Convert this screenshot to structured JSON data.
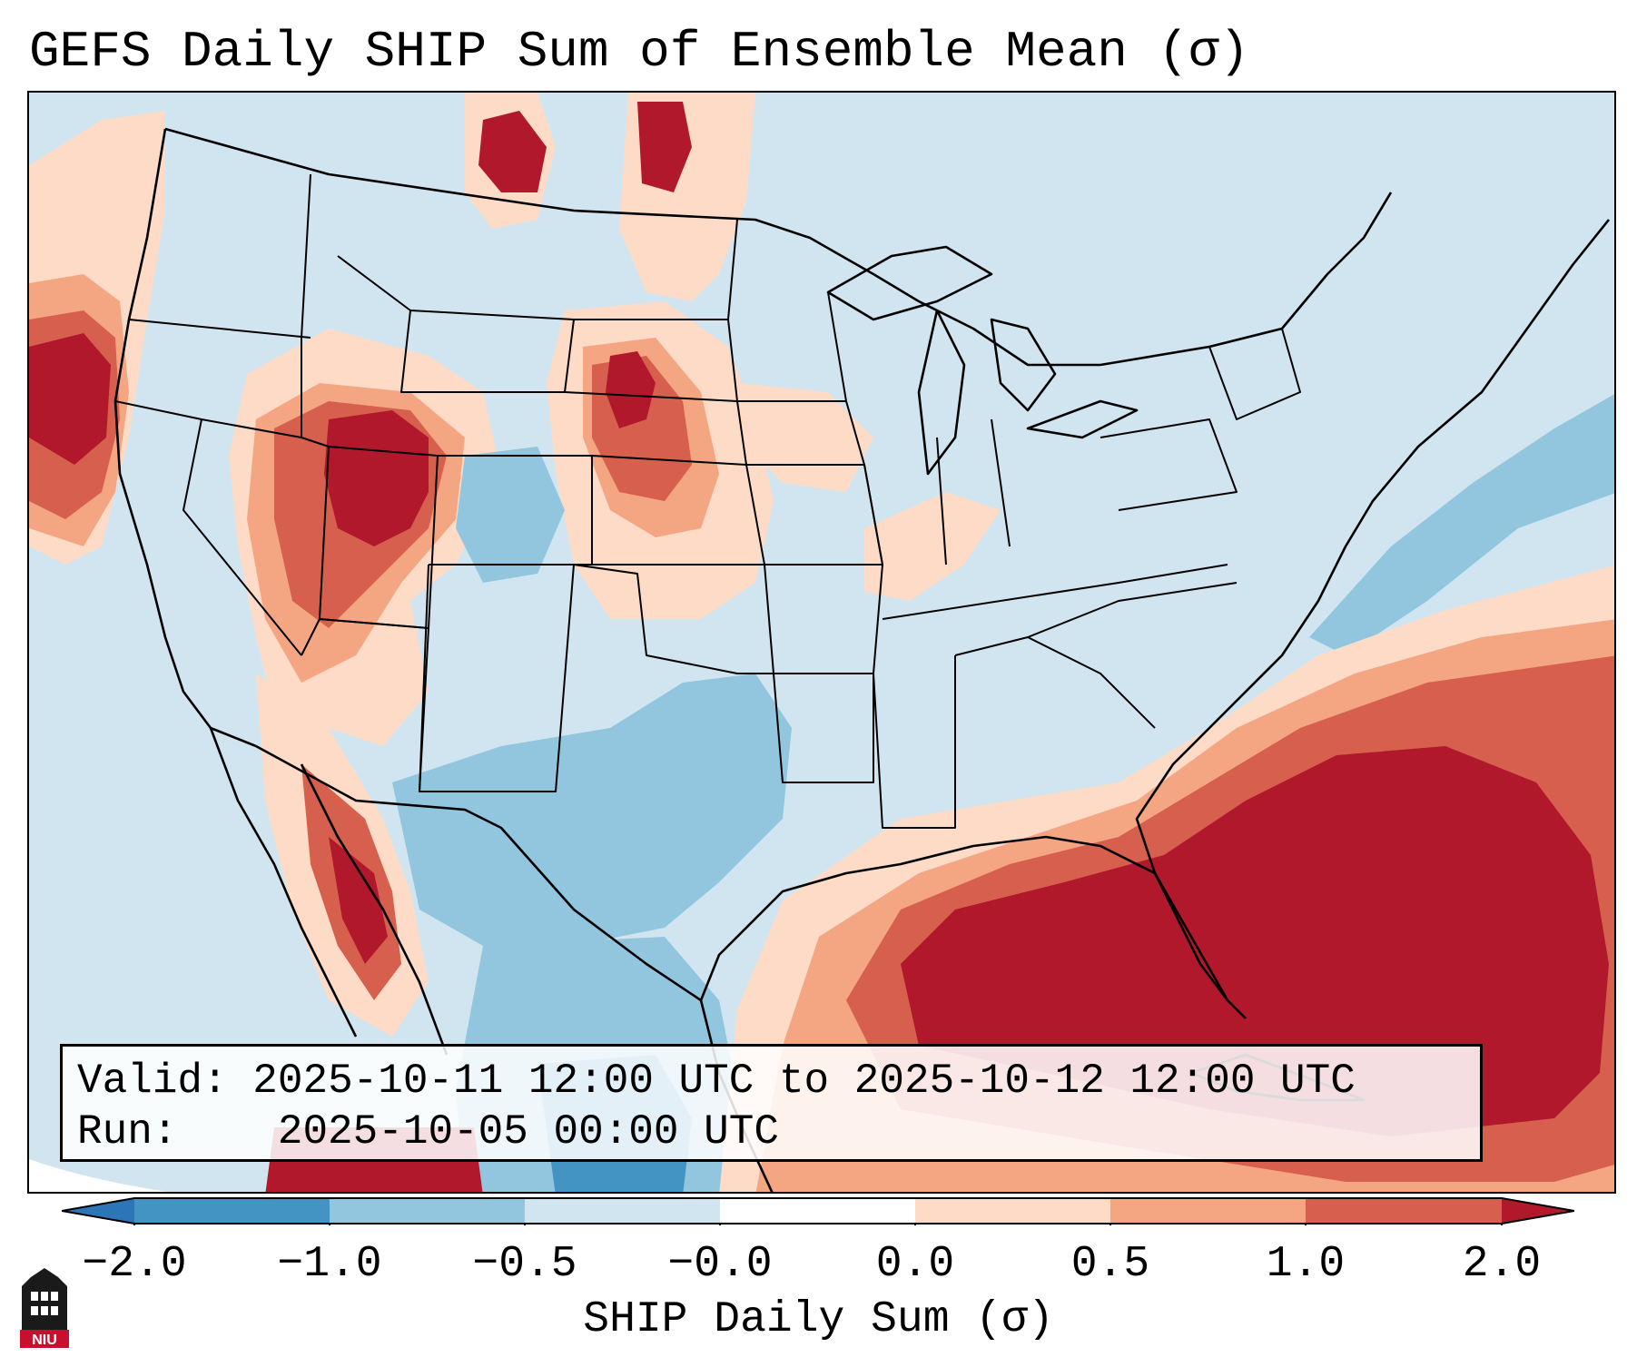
{
  "title": "GEFS Daily SHIP Sum of Ensemble Mean (σ)",
  "info": {
    "valid_label": "Valid:",
    "valid_text": "2025-10-11 12:00 UTC to 2025-10-12 12:00 UTC",
    "run_label": "Run:",
    "run_text": "2025-10-05 00:00 UTC"
  },
  "colorbar": {
    "label": "SHIP Daily Sum (σ)",
    "ticks": [
      "−2.0",
      "−1.0",
      "−0.5",
      "−0.0",
      "0.0",
      "0.5",
      "1.0",
      "2.0"
    ],
    "colors": {
      "lt_neg2": "#2c76b8",
      "neg2_neg1": "#4393c3",
      "neg1_neg05": "#92c5de",
      "neg05_0": "#d1e5f0",
      "zero": "#ffffff",
      "pos0_05": "#fddbc7",
      "pos05_1": "#f4a582",
      "pos1_2": "#d6604d",
      "gt_pos2": "#b2182b"
    }
  },
  "logo": {
    "text": "NIU",
    "colors": {
      "red": "#c8102e",
      "black": "#1a1a1a"
    }
  }
}
